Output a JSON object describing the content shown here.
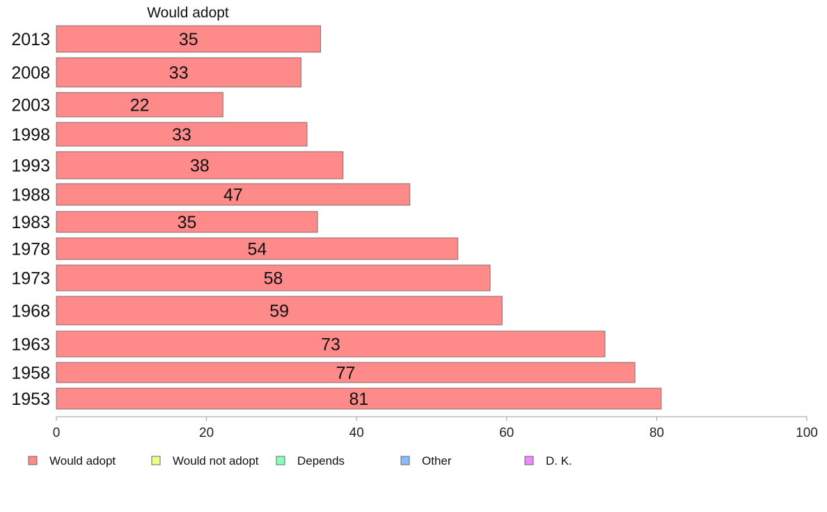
{
  "chart_data": {
    "type": "bar",
    "orientation": "horizontal",
    "series_title": "Would adopt",
    "categories": [
      "2013",
      "2008",
      "2003",
      "1998",
      "1993",
      "1988",
      "1983",
      "1978",
      "1973",
      "1968",
      "1963",
      "1958",
      "1953"
    ],
    "series": [
      {
        "name": "Would adopt",
        "color": "#ff8a8a",
        "values": [
          35.2,
          32.6,
          22.2,
          33.4,
          38.2,
          47.1,
          34.8,
          53.5,
          57.8,
          59.4,
          73.1,
          77.1,
          80.6
        ],
        "labels": [
          "35",
          "33",
          "22",
          "33",
          "38",
          "47",
          "35",
          "54",
          "58",
          "59",
          "73",
          "77",
          "81"
        ]
      }
    ],
    "xlim": [
      0,
      100
    ],
    "xticks": [
      "0",
      "20",
      "40",
      "60",
      "80",
      "100"
    ],
    "grid": false,
    "legend_position": "bottom",
    "legend": [
      {
        "label": "Would adopt",
        "color": "#ff8a8a"
      },
      {
        "label": "Would not adopt",
        "color": "#eeff88"
      },
      {
        "label": "Depends",
        "color": "#88ffbb"
      },
      {
        "label": "Other",
        "color": "#88bbff"
      },
      {
        "label": "D. K.",
        "color": "#ee88ff"
      }
    ]
  }
}
